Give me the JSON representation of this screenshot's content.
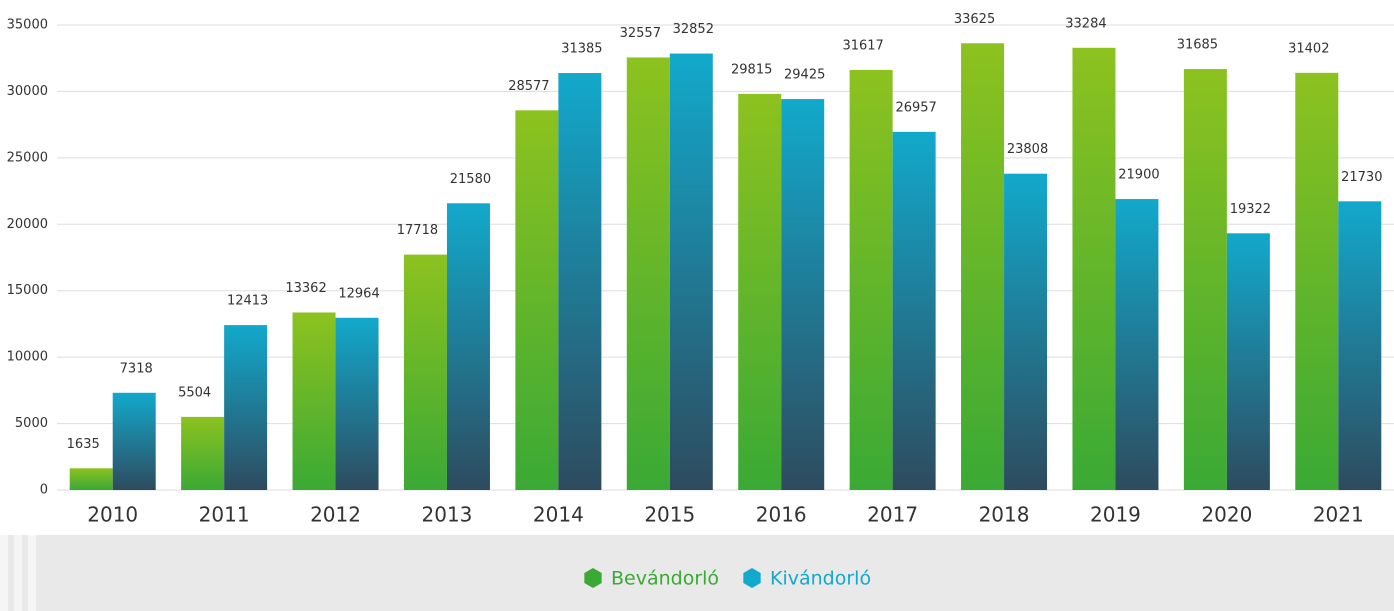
{
  "chart_data": {
    "type": "bar",
    "categories": [
      "2010",
      "2011",
      "2012",
      "2013",
      "2014",
      "2015",
      "2016",
      "2017",
      "2018",
      "2019",
      "2020",
      "2021"
    ],
    "series": [
      {
        "name": "Bevándorló",
        "color": "#3aa935",
        "gradient": [
          "#8dc21f",
          "#3aa935"
        ],
        "values": [
          1635,
          5504,
          13362,
          17718,
          28577,
          32557,
          29815,
          31617,
          33625,
          33284,
          31685,
          31402
        ]
      },
      {
        "name": "Kivándorló",
        "color": "#12a9cc",
        "gradient": [
          "#12a9cc",
          "#2e4b5e"
        ],
        "values": [
          7318,
          12413,
          12964,
          21580,
          31385,
          32852,
          29425,
          26957,
          23808,
          21900,
          19322,
          21730
        ]
      }
    ],
    "ylim": [
      0,
      35000
    ],
    "yticks": [
      0,
      5000,
      10000,
      15000,
      20000,
      25000,
      30000,
      35000
    ],
    "grid": true,
    "legend": "bottom"
  }
}
